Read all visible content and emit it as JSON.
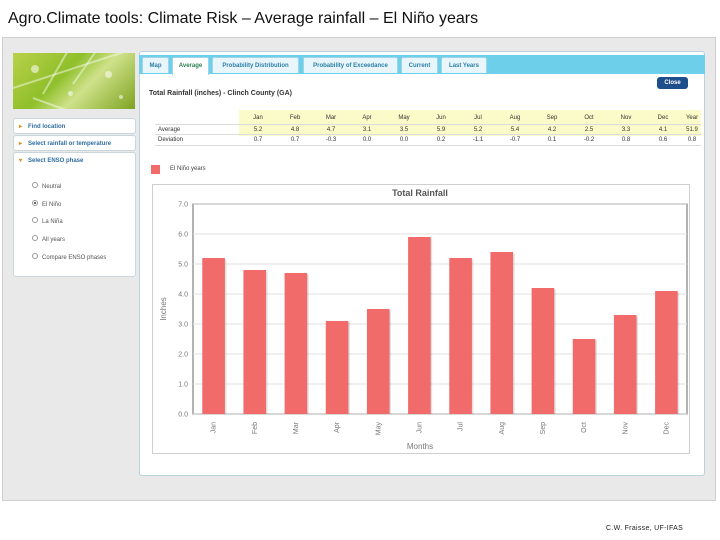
{
  "slide": {
    "title": "Agro.Climate tools: Climate Risk – Average rainfall – El Niño years",
    "credit": "C.W. Fraisse, UF-IFAS"
  },
  "sidebar": {
    "items": [
      {
        "label": "Find location",
        "arrow": "▸"
      },
      {
        "label": "Select rainfall or temperature",
        "arrow": "▸"
      },
      {
        "label": "Select ENSO phase",
        "arrow": "▾"
      }
    ],
    "enso_options": [
      {
        "label": "Neutral",
        "checked": false
      },
      {
        "label": "El Niño",
        "checked": true
      },
      {
        "label": "La Niña",
        "checked": false
      },
      {
        "label": "All years",
        "checked": false
      },
      {
        "label": "Compare ENSO phases",
        "checked": false
      }
    ]
  },
  "tabs": [
    {
      "label": "Map",
      "active": false
    },
    {
      "label": "Average",
      "active": true
    },
    {
      "label": "Probability Distribution",
      "active": false
    },
    {
      "label": "Probability of Exceedance",
      "active": false
    },
    {
      "label": "Current",
      "active": false
    },
    {
      "label": "Last Years",
      "active": false
    }
  ],
  "close_label": "Close",
  "table": {
    "title": "Total Rainfall (inches)  - Clinch County (GA)",
    "columns": [
      "Jan",
      "Feb",
      "Mar",
      "Apr",
      "May",
      "Jun",
      "Jul",
      "Aug",
      "Sep",
      "Oct",
      "Nov",
      "Dec",
      "Year"
    ],
    "rows": [
      {
        "label": "Average",
        "values": [
          "5.2",
          "4.8",
          "4.7",
          "3.1",
          "3.5",
          "5.9",
          "5.2",
          "5.4",
          "4.2",
          "2.5",
          "3.3",
          "4.1",
          "51.9"
        ]
      },
      {
        "label": "Deviation",
        "values": [
          "0.7",
          "0.7",
          "-0.3",
          "0.0",
          "0.0",
          "0.2",
          "-1.1",
          "-0.7",
          "0.1",
          "-0.2",
          "0.8",
          "0.6",
          "0.8"
        ]
      }
    ]
  },
  "legend": {
    "label": "El Niño years",
    "color": "#f26b6b"
  },
  "chart_data": {
    "type": "bar",
    "title": "Total Rainfall",
    "xlabel": "Months",
    "ylabel": "Inches",
    "categories": [
      "Jan",
      "Feb",
      "Mar",
      "Apr",
      "May",
      "Jun",
      "Jul",
      "Aug",
      "Sep",
      "Oct",
      "Nov",
      "Dec"
    ],
    "series": [
      {
        "name": "El Niño years",
        "values": [
          5.2,
          4.8,
          4.7,
          3.1,
          3.5,
          5.9,
          5.2,
          5.4,
          4.2,
          2.5,
          3.3,
          4.1
        ],
        "color": "#f26b6b"
      }
    ],
    "ylim": [
      0,
      7
    ],
    "yticks": [
      "0.0",
      "1.0",
      "2.0",
      "3.0",
      "4.0",
      "5.0",
      "6.0",
      "7.0"
    ],
    "grid": true,
    "legend_position": "top-left"
  }
}
